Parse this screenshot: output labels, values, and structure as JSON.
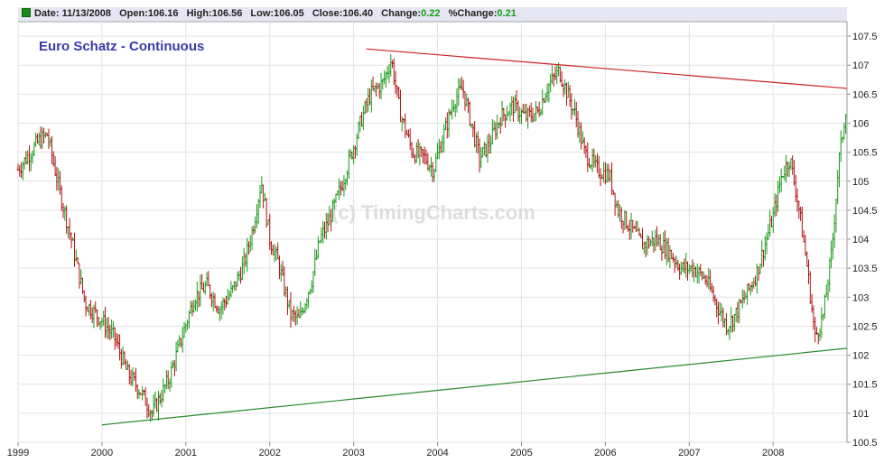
{
  "header": {
    "date_label": "Date:",
    "date": "11/13/2008",
    "open_label": "Open:",
    "open": "106.16",
    "high_label": "High:",
    "high": "106.56",
    "low_label": "Low:",
    "low": "106.05",
    "close_label": "Close:",
    "close": "106.40",
    "change_label": "Change:",
    "change": "0.22",
    "pct_change_label": "%Change:",
    "pct_change": "0.21"
  },
  "chart_data": {
    "type": "ohlc",
    "title": "Euro Schatz - Continuous",
    "watermark": "(c) TimingCharts.com",
    "x_ticks": [
      "1999",
      "2000",
      "2001",
      "2002",
      "2003",
      "2004",
      "2005",
      "2006",
      "2007",
      "2008"
    ],
    "x_range": [
      1999.0,
      2008.88
    ],
    "y_ticks": [
      100.5,
      101,
      101.5,
      102,
      102.5,
      103,
      103.5,
      104,
      104.5,
      105,
      105.5,
      106,
      106.5,
      107,
      107.5
    ],
    "ylim": [
      100.5,
      107.75
    ],
    "grid": true,
    "up_color": "#1a9a1a",
    "down_color": "#b01010",
    "approx_close_path": [
      [
        1999.0,
        105.2
      ],
      [
        1999.1,
        105.4
      ],
      [
        1999.25,
        105.7
      ],
      [
        1999.35,
        105.8
      ],
      [
        1999.5,
        104.8
      ],
      [
        1999.65,
        103.9
      ],
      [
        1999.8,
        102.9
      ],
      [
        2000.0,
        102.6
      ],
      [
        2000.15,
        102.3
      ],
      [
        2000.3,
        101.7
      ],
      [
        2000.45,
        101.4
      ],
      [
        2000.6,
        101.0
      ],
      [
        2000.8,
        101.6
      ],
      [
        2000.95,
        102.3
      ],
      [
        2001.1,
        103.0
      ],
      [
        2001.25,
        103.2
      ],
      [
        2001.4,
        102.8
      ],
      [
        2001.55,
        103.1
      ],
      [
        2001.7,
        103.6
      ],
      [
        2001.8,
        104.2
      ],
      [
        2001.9,
        105.0
      ],
      [
        2002.0,
        104.0
      ],
      [
        2002.1,
        103.6
      ],
      [
        2002.25,
        102.7
      ],
      [
        2002.35,
        102.6
      ],
      [
        2002.5,
        103.3
      ],
      [
        2002.6,
        104.0
      ],
      [
        2002.7,
        104.3
      ],
      [
        2002.85,
        104.9
      ],
      [
        2003.0,
        105.6
      ],
      [
        2003.1,
        106.1
      ],
      [
        2003.2,
        106.5
      ],
      [
        2003.35,
        106.7
      ],
      [
        2003.45,
        107.1
      ],
      [
        2003.55,
        106.2
      ],
      [
        2003.7,
        105.5
      ],
      [
        2003.85,
        105.4
      ],
      [
        2003.95,
        105.2
      ],
      [
        2004.05,
        105.7
      ],
      [
        2004.2,
        106.4
      ],
      [
        2004.3,
        106.6
      ],
      [
        2004.4,
        106.0
      ],
      [
        2004.5,
        105.4
      ],
      [
        2004.6,
        105.6
      ],
      [
        2004.75,
        106.1
      ],
      [
        2004.9,
        106.3
      ],
      [
        2005.05,
        106.1
      ],
      [
        2005.2,
        106.2
      ],
      [
        2005.3,
        106.6
      ],
      [
        2005.45,
        106.9
      ],
      [
        2005.55,
        106.5
      ],
      [
        2005.65,
        106.1
      ],
      [
        2005.75,
        105.5
      ],
      [
        2005.9,
        105.2
      ],
      [
        2006.05,
        105.1
      ],
      [
        2006.15,
        104.5
      ],
      [
        2006.3,
        104.2
      ],
      [
        2006.45,
        103.9
      ],
      [
        2006.6,
        104.0
      ],
      [
        2006.75,
        103.8
      ],
      [
        2006.9,
        103.5
      ],
      [
        2007.05,
        103.5
      ],
      [
        2007.2,
        103.3
      ],
      [
        2007.35,
        102.8
      ],
      [
        2007.45,
        102.5
      ],
      [
        2007.55,
        102.7
      ],
      [
        2007.7,
        103.1
      ],
      [
        2007.8,
        103.4
      ],
      [
        2007.9,
        103.9
      ],
      [
        2008.0,
        104.4
      ],
      [
        2008.1,
        105.1
      ],
      [
        2008.2,
        105.4
      ],
      [
        2008.3,
        104.6
      ],
      [
        2008.4,
        103.6
      ],
      [
        2008.5,
        102.3
      ],
      [
        2008.6,
        102.7
      ],
      [
        2008.7,
        103.8
      ],
      [
        2008.78,
        105.3
      ],
      [
        2008.88,
        106.4
      ]
    ],
    "trendlines": [
      {
        "color": "#cc2222",
        "from": [
          2003.15,
          107.28
        ],
        "to": [
          2008.88,
          106.6
        ]
      },
      {
        "color": "#2a8a2a",
        "from": [
          2000.0,
          100.8
        ],
        "to": [
          2008.88,
          102.12
        ]
      }
    ]
  }
}
